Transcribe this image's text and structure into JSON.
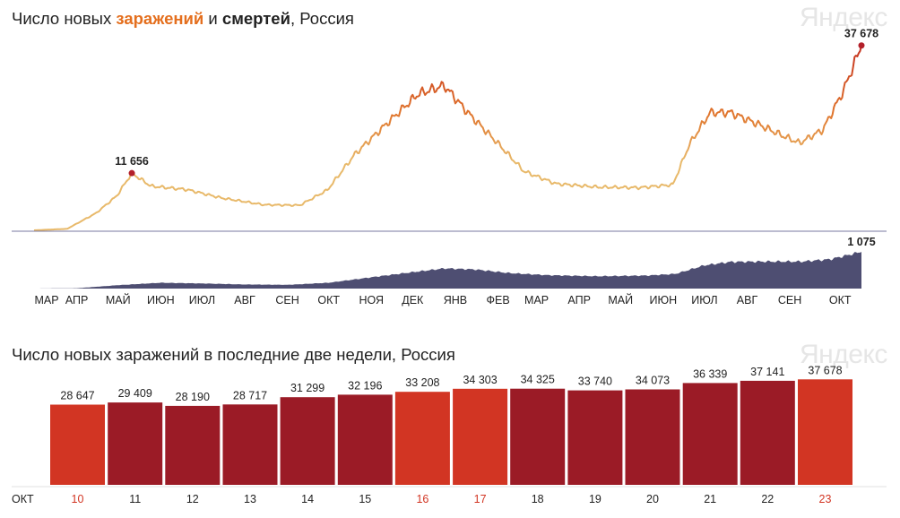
{
  "top": {
    "title_part1": "Число новых ",
    "title_infections": "заражений",
    "title_part2": " и ",
    "title_deaths": "смертей",
    "title_part3": ", Россия",
    "brand": "Яндекс"
  },
  "bottom": {
    "title": "Число новых заражений в последние две недели, Россия",
    "brand": "Яндекс",
    "month_label": "ОКТ"
  },
  "colors": {
    "infections_low": "#e8b96a",
    "infections_mid": "#e0742c",
    "infections_high": "#c0271f",
    "deaths_fill": "#4e4e72",
    "bar_weekend": "#d23523",
    "bar_weekday": "#9b1b26",
    "weekend_label": "#d23523",
    "baseline": "#7a7aa0"
  },
  "chart_data": [
    {
      "type": "line",
      "name": "infections",
      "x_range": [
        "2020-03-01",
        "2021-10-23"
      ],
      "x_tick_labels": [
        "МАР",
        "АПР",
        "МАЙ",
        "ИЮН",
        "ИЮЛ",
        "АВГ",
        "СЕН",
        "ОКТ",
        "НОЯ",
        "ДЕК",
        "ЯНВ",
        "ФЕВ",
        "МАР",
        "АПР",
        "МАЙ",
        "ИЮН",
        "ИЮЛ",
        "АВГ",
        "СЕН",
        "ОКТ"
      ],
      "keypoints": [
        {
          "x": "2020-03-01",
          "y": 0
        },
        {
          "x": "2020-03-25",
          "y": 300
        },
        {
          "x": "2020-04-15",
          "y": 3500
        },
        {
          "x": "2020-04-30",
          "y": 7000
        },
        {
          "x": "2020-05-11",
          "y": 11656
        },
        {
          "x": "2020-05-25",
          "y": 9000
        },
        {
          "x": "2020-06-20",
          "y": 8300
        },
        {
          "x": "2020-07-15",
          "y": 6600
        },
        {
          "x": "2020-08-15",
          "y": 5200
        },
        {
          "x": "2020-09-10",
          "y": 5100
        },
        {
          "x": "2020-09-30",
          "y": 8200
        },
        {
          "x": "2020-10-20",
          "y": 15500
        },
        {
          "x": "2020-11-15",
          "y": 22500
        },
        {
          "x": "2020-12-05",
          "y": 27800
        },
        {
          "x": "2020-12-24",
          "y": 29500
        },
        {
          "x": "2021-01-10",
          "y": 24000
        },
        {
          "x": "2021-01-31",
          "y": 18000
        },
        {
          "x": "2021-02-20",
          "y": 12000
        },
        {
          "x": "2021-03-15",
          "y": 9500
        },
        {
          "x": "2021-04-15",
          "y": 8800
        },
        {
          "x": "2021-05-15",
          "y": 8700
        },
        {
          "x": "2021-06-08",
          "y": 9300
        },
        {
          "x": "2021-06-20",
          "y": 17500
        },
        {
          "x": "2021-07-05",
          "y": 24000
        },
        {
          "x": "2021-07-20",
          "y": 24000
        },
        {
          "x": "2021-08-10",
          "y": 21500
        },
        {
          "x": "2021-08-25",
          "y": 19500
        },
        {
          "x": "2021-09-08",
          "y": 17800
        },
        {
          "x": "2021-09-25",
          "y": 20500
        },
        {
          "x": "2021-10-10",
          "y": 28500
        },
        {
          "x": "2021-10-23",
          "y": 37678
        }
      ],
      "annotations": [
        {
          "x": "2020-05-11",
          "label": "11 656"
        },
        {
          "x": "2021-10-23",
          "label": "37 678"
        }
      ],
      "ylim": [
        0,
        40000
      ]
    },
    {
      "type": "area",
      "name": "deaths",
      "x_range": [
        "2020-03-01",
        "2021-10-23"
      ],
      "keypoints": [
        {
          "x": "2020-03-01",
          "y": 0
        },
        {
          "x": "2020-04-01",
          "y": 10
        },
        {
          "x": "2020-05-01",
          "y": 100
        },
        {
          "x": "2020-06-01",
          "y": 170
        },
        {
          "x": "2020-07-01",
          "y": 150
        },
        {
          "x": "2020-08-01",
          "y": 120
        },
        {
          "x": "2020-09-01",
          "y": 110
        },
        {
          "x": "2020-10-01",
          "y": 170
        },
        {
          "x": "2020-11-01",
          "y": 330
        },
        {
          "x": "2020-12-01",
          "y": 480
        },
        {
          "x": "2020-12-24",
          "y": 590
        },
        {
          "x": "2021-01-15",
          "y": 560
        },
        {
          "x": "2021-02-10",
          "y": 450
        },
        {
          "x": "2021-03-10",
          "y": 390
        },
        {
          "x": "2021-04-15",
          "y": 360
        },
        {
          "x": "2021-05-20",
          "y": 380
        },
        {
          "x": "2021-06-10",
          "y": 430
        },
        {
          "x": "2021-07-01",
          "y": 680
        },
        {
          "x": "2021-07-20",
          "y": 780
        },
        {
          "x": "2021-08-15",
          "y": 790
        },
        {
          "x": "2021-09-10",
          "y": 790
        },
        {
          "x": "2021-10-01",
          "y": 860
        },
        {
          "x": "2021-10-23",
          "y": 1075
        }
      ],
      "annotations": [
        {
          "x": "2021-10-23",
          "label": "1 075"
        }
      ],
      "ylim": [
        0,
        1100
      ]
    },
    {
      "type": "bar",
      "name": "last_two_weeks",
      "categories": [
        "10",
        "11",
        "12",
        "13",
        "14",
        "15",
        "16",
        "17",
        "18",
        "19",
        "20",
        "21",
        "22",
        "23"
      ],
      "values": [
        28647,
        29409,
        28190,
        28717,
        31299,
        32196,
        33208,
        34303,
        34325,
        33740,
        34073,
        36339,
        37141,
        37678
      ],
      "value_labels": [
        "28 647",
        "29 409",
        "28 190",
        "28 717",
        "31 299",
        "32 196",
        "33 208",
        "34 303",
        "34 325",
        "33 740",
        "34 073",
        "36 339",
        "37 141",
        "37 678"
      ],
      "weekend": [
        true,
        false,
        false,
        false,
        false,
        false,
        true,
        true,
        false,
        false,
        false,
        false,
        false,
        true
      ],
      "ylim": [
        0,
        40000
      ]
    }
  ]
}
